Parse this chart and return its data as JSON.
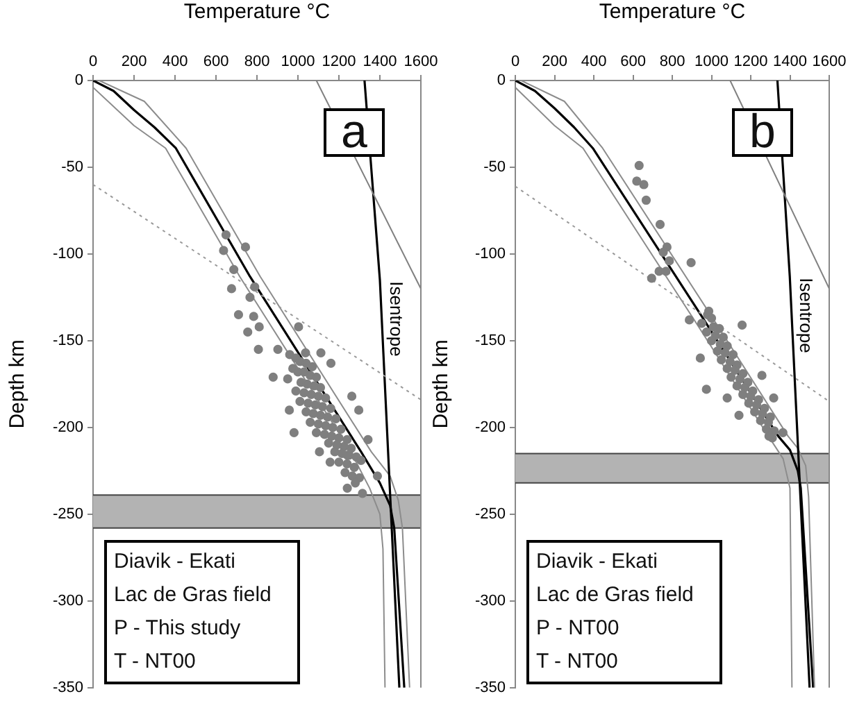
{
  "chart_data": [
    {
      "type": "scatter",
      "xlabel": "Temperature °C",
      "ylabel": "Depth km",
      "xlim": [
        0,
        1600
      ],
      "xticks": [
        0,
        200,
        400,
        600,
        800,
        1000,
        1200,
        1400,
        1600
      ],
      "ylim": [
        -350,
        0
      ],
      "yticks": [
        -350,
        -300,
        -250,
        -200,
        -150,
        -100,
        -50,
        0
      ],
      "grid": false,
      "bands": [
        {
          "axis": "y",
          "from": -258,
          "to": -239,
          "color": "#b3b3b3"
        }
      ],
      "ref_lines": [
        {
          "axis": "y",
          "value": -258,
          "color": "#444444"
        },
        {
          "axis": "y",
          "value": -239,
          "color": "#444444"
        }
      ],
      "annotations": [
        "a",
        "Diavik - Ekati",
        "Lac de Gras field",
        "P - This study",
        "T - NT00"
      ],
      "series": [
        {
          "type": "line",
          "color": "#999999",
          "line_style": "dotted",
          "x": [
            0,
            1600
          ],
          "values": [
            -60,
            -184
          ]
        },
        {
          "type": "line",
          "color": "#808080",
          "x": [
            1090,
            1600
          ],
          "values": [
            0,
            -120
          ]
        },
        {
          "type": "line",
          "name": "Isentrope",
          "color": "#000000",
          "x": [
            1325,
            1400,
            1495
          ],
          "values": [
            0,
            -115,
            -350
          ]
        },
        {
          "type": "line",
          "color": "#8c8c8c",
          "x": [
            0,
            200,
            354,
            716,
            1258,
            1350,
            1400,
            1415,
            1425
          ],
          "values": [
            -4,
            -26,
            -39,
            -113,
            -214,
            -235,
            -250,
            -270,
            -350
          ]
        },
        {
          "type": "line",
          "color": "#8c8c8c",
          "x": [
            30,
            250,
            454,
            816,
            1358,
            1450,
            1490,
            1510,
            1545
          ],
          "values": [
            0,
            -12,
            -39,
            -113,
            -214,
            -228,
            -242,
            -258,
            -350
          ]
        },
        {
          "type": "scatter",
          "color": "#7f7f7f",
          "marker": "circle",
          "x": [
            960,
            990,
            1010,
            1040,
            1070,
            975,
            1000,
            1030,
            1060,
            1090,
            950,
            1015,
            1045,
            1080,
            1110,
            990,
            1030,
            1065,
            1100,
            1135,
            1010,
            1050,
            1085,
            1120,
            1160,
            1040,
            1075,
            1110,
            1145,
            1185,
            1060,
            1100,
            1135,
            1170,
            1210,
            1090,
            1130,
            1165,
            1200,
            1240,
            1150,
            1190,
            1225,
            1260,
            1180,
            1215,
            1250,
            1285,
            1200,
            1240,
            1275,
            1230,
            1265,
            1300,
            1280,
            649,
            744,
            637,
            687,
            789,
            676,
            766,
            710,
            784,
            755,
            811,
            807,
            1003,
            902,
            879,
            958,
            981,
            1112,
            1105,
            1157,
            1241,
            1315,
            1388,
            1342,
            1297,
            1263,
            1161,
            1037,
            1308,
            1241
          ],
          "values": [
            -158,
            -160,
            -162,
            -163,
            -165,
            -166,
            -168,
            -168,
            -170,
            -171,
            -172,
            -174,
            -175,
            -176,
            -177,
            -179,
            -180,
            -181,
            -182,
            -183,
            -185,
            -186,
            -187,
            -188,
            -189,
            -191,
            -192,
            -193,
            -194,
            -195,
            -197,
            -198,
            -199,
            -200,
            -201,
            -203,
            -204,
            -205,
            -206,
            -207,
            -209,
            -210,
            -211,
            -212,
            -214,
            -215,
            -216,
            -217,
            -220,
            -221,
            -223,
            -226,
            -228,
            -229,
            -232,
            -89,
            -96,
            -98,
            -109,
            -119,
            -120,
            -125,
            -135,
            -136,
            -145,
            -142,
            -155,
            -142,
            -155,
            -171,
            -190,
            -203,
            -157,
            -214,
            -220,
            -235,
            -238,
            -228,
            -207,
            -190,
            -182,
            -163,
            -157,
            -219,
            -216
          ]
        },
        {
          "type": "line",
          "color": "#000000",
          "x": [
            0,
            100,
            200,
            300,
            404,
            766,
            1308,
            1400,
            1450,
            1470,
            1519
          ],
          "values": [
            0,
            -6,
            -17,
            -27,
            -39,
            -113,
            -214,
            -232,
            -245,
            -258,
            -350
          ]
        }
      ]
    },
    {
      "type": "scatter",
      "xlabel": "Temperature °C",
      "ylabel": "Depth km",
      "xlim": [
        0,
        1600
      ],
      "xticks": [
        0,
        200,
        400,
        600,
        800,
        1000,
        1200,
        1400,
        1600
      ],
      "ylim": [
        -350,
        0
      ],
      "yticks": [
        -350,
        -300,
        -250,
        -200,
        -150,
        -100,
        -50,
        0
      ],
      "grid": false,
      "bands": [
        {
          "axis": "y",
          "from": -232,
          "to": -215,
          "color": "#b3b3b3"
        }
      ],
      "ref_lines": [
        {
          "axis": "y",
          "value": -232,
          "color": "#444444"
        },
        {
          "axis": "y",
          "value": -215,
          "color": "#444444"
        }
      ],
      "annotations": [
        "b",
        "Diavik - Ekati",
        "Lac de Gras field",
        "P - NT00",
        "T - NT00"
      ],
      "series": [
        {
          "type": "line",
          "color": "#999999",
          "line_style": "dotted",
          "x": [
            0,
            1600
          ],
          "values": [
            -61,
            -185
          ]
        },
        {
          "type": "line",
          "color": "#808080",
          "x": [
            1095,
            1600
          ],
          "values": [
            0,
            -120
          ]
        },
        {
          "type": "line",
          "name": "Isentrope",
          "color": "#000000",
          "x": [
            1336,
            1399,
            1500
          ],
          "values": [
            0,
            -113,
            -350
          ]
        },
        {
          "type": "line",
          "color": "#8c8c8c",
          "x": [
            0,
            200,
            345,
            912,
            1290,
            1365,
            1400,
            1410
          ],
          "values": [
            -4,
            -26,
            -39,
            -138,
            -205,
            -218,
            -235,
            -350
          ]
        },
        {
          "type": "line",
          "color": "#8c8c8c",
          "x": [
            30,
            250,
            445,
            1012,
            1390,
            1440,
            1480,
            1495,
            1525
          ],
          "values": [
            0,
            -12,
            -39,
            -138,
            -205,
            -212,
            -222,
            -240,
            -350
          ]
        },
        {
          "type": "scatter",
          "color": "#7f7f7f",
          "marker": "circle",
          "x": [
            980,
            1000,
            950,
            1010,
            1040,
            975,
            1020,
            1060,
            1000,
            1045,
            1080,
            1030,
            1070,
            1110,
            1050,
            1095,
            1130,
            1080,
            1120,
            1160,
            1100,
            1145,
            1185,
            1130,
            1170,
            1210,
            1160,
            1200,
            1240,
            1190,
            1230,
            1270,
            1220,
            1260,
            1300,
            1250,
            1290,
            1280,
            1320,
            1310,
            631,
            619,
            655,
            667,
            738,
            773,
            754,
            785,
            896,
            733,
            768,
            695,
            986,
            887,
            1156,
            943,
            974,
            1080,
            1140,
            1293,
            1364,
            1257,
            1317
          ],
          "values": [
            -135,
            -137,
            -140,
            -142,
            -143,
            -145,
            -147,
            -148,
            -150,
            -152,
            -153,
            -156,
            -157,
            -158,
            -161,
            -162,
            -164,
            -166,
            -167,
            -169,
            -171,
            -172,
            -174,
            -176,
            -177,
            -179,
            -181,
            -182,
            -184,
            -186,
            -187,
            -189,
            -191,
            -192,
            -194,
            -196,
            -197,
            -201,
            -202,
            -206,
            -49,
            -58,
            -60,
            -69,
            -83,
            -96,
            -99,
            -104,
            -105,
            -110,
            -110,
            -114,
            -133,
            -138,
            -141,
            -160,
            -178,
            -183,
            -193,
            -205,
            -203,
            -170,
            -183
          ]
        },
        {
          "type": "line",
          "color": "#000000",
          "x": [
            0,
            100,
            200,
            300,
            395,
            962,
            1340,
            1400,
            1440,
            1455,
            1518
          ],
          "values": [
            0,
            -6,
            -16,
            -27,
            -39,
            -138,
            -205,
            -213,
            -225,
            -235,
            -350
          ]
        }
      ]
    }
  ]
}
